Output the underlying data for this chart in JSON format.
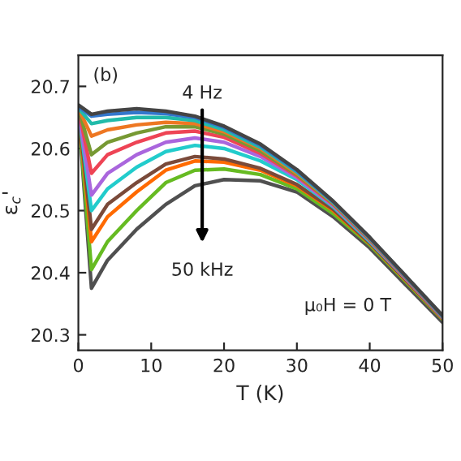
{
  "chart_data": {
    "type": "line",
    "xlabel": "T (K)",
    "ylabel": "ε$_{c}$'",
    "annotations": [
      "(b)",
      "4 Hz",
      "50 kHz",
      "μ₀H = 0 T"
    ],
    "x": [
      0,
      1.8,
      4,
      8,
      12,
      16,
      20,
      25,
      30,
      35,
      40,
      45,
      50
    ],
    "series": [
      {
        "color": "#505050",
        "values": [
          20.66,
          20.375,
          20.42,
          20.47,
          20.51,
          20.54,
          20.55,
          20.548,
          20.53,
          20.49,
          20.44,
          20.38,
          20.32
        ]
      },
      {
        "color": "#66bb22",
        "values": [
          20.66,
          20.405,
          20.45,
          20.5,
          20.545,
          20.565,
          20.567,
          20.558,
          20.535,
          20.495,
          20.445,
          20.385,
          20.325
        ]
      },
      {
        "color": "#ff6a00",
        "values": [
          20.66,
          20.45,
          20.49,
          20.53,
          20.565,
          20.58,
          20.578,
          20.565,
          20.54,
          20.5,
          20.447,
          20.387,
          20.326
        ]
      },
      {
        "color": "#7a4a3a",
        "values": [
          20.66,
          20.47,
          20.51,
          20.545,
          20.575,
          20.587,
          20.583,
          20.568,
          20.542,
          20.502,
          20.448,
          20.388,
          20.327
        ]
      },
      {
        "color": "#22cccc",
        "values": [
          20.66,
          20.5,
          20.535,
          20.57,
          20.595,
          20.605,
          20.6,
          20.58,
          20.55,
          20.506,
          20.45,
          20.39,
          20.328
        ]
      },
      {
        "color": "#aa66dd",
        "values": [
          20.66,
          20.525,
          20.56,
          20.59,
          20.61,
          20.617,
          20.61,
          20.587,
          20.553,
          20.508,
          20.452,
          20.39,
          20.328
        ]
      },
      {
        "color": "#ee4455",
        "values": [
          20.665,
          20.56,
          20.59,
          20.61,
          20.625,
          20.628,
          20.618,
          20.592,
          20.556,
          20.51,
          20.453,
          20.391,
          20.329
        ]
      },
      {
        "color": "#779933",
        "values": [
          20.665,
          20.59,
          20.61,
          20.625,
          20.635,
          20.635,
          20.623,
          20.596,
          20.558,
          20.511,
          20.454,
          20.392,
          20.329
        ]
      },
      {
        "color": "#ee7722",
        "values": [
          20.665,
          20.62,
          20.63,
          20.638,
          20.642,
          20.64,
          20.627,
          20.6,
          20.56,
          20.512,
          20.455,
          20.392,
          20.33
        ]
      },
      {
        "color": "#22bbaa",
        "values": [
          20.665,
          20.64,
          20.645,
          20.65,
          20.65,
          20.645,
          20.63,
          20.602,
          20.562,
          20.513,
          20.456,
          20.393,
          20.33
        ]
      },
      {
        "color": "#3377cc",
        "values": [
          20.667,
          20.652,
          20.655,
          20.658,
          20.656,
          20.65,
          20.634,
          20.605,
          20.564,
          20.514,
          20.456,
          20.393,
          20.33
        ]
      },
      {
        "color": "#444444",
        "values": [
          20.67,
          20.655,
          20.66,
          20.664,
          20.66,
          20.652,
          20.636,
          20.607,
          20.566,
          20.515,
          20.457,
          20.394,
          20.331
        ]
      }
    ],
    "xlim": [
      0,
      50
    ],
    "xticks": [
      0,
      10,
      20,
      30,
      40,
      50
    ],
    "ylim": [
      20.275,
      20.75
    ],
    "yticks": [
      20.3,
      20.4,
      20.5,
      20.6,
      20.7
    ],
    "grid": false,
    "legend": false
  }
}
